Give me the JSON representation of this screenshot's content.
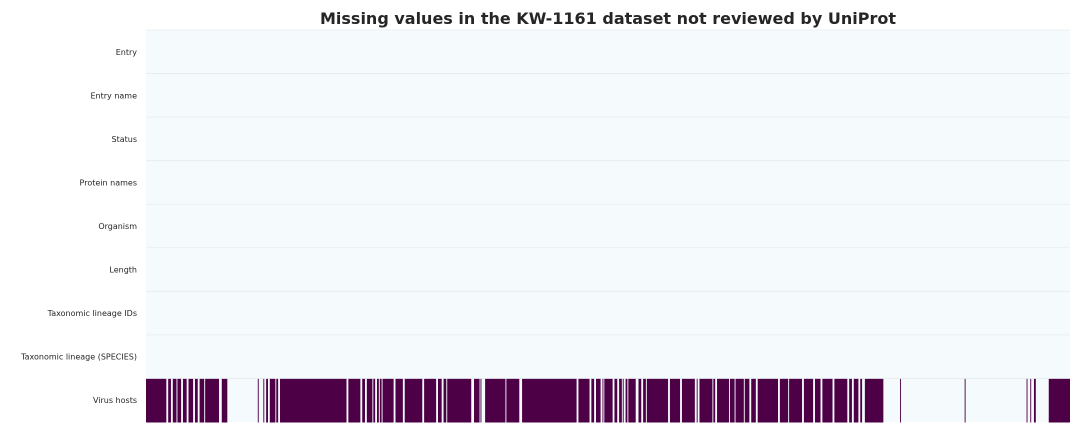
{
  "chart_data": {
    "type": "heatmap",
    "title": "Missing values in the KW-1161 dataset not reviewed by UniProt",
    "rows": [
      "Entry",
      "Entry name",
      "Status",
      "Protein names",
      "Organism",
      "Length",
      "Taxonomic lineage IDs",
      "Taxonomic lineage (SPECIES)",
      "Virus hosts"
    ],
    "colors": {
      "present": "#f5fbfd",
      "missing": "#4e0047",
      "grid": "#e6ecee"
    },
    "grid": true,
    "missing_rows": [
      0,
      0,
      0,
      0,
      0,
      0,
      0,
      0,
      1
    ],
    "missing_segments": {
      "row": "Virus hosts",
      "unit": "fraction of records",
      "ranges": [
        [
          0.0,
          0.022
        ],
        [
          0.024,
          0.027
        ],
        [
          0.029,
          0.033
        ],
        [
          0.034,
          0.038
        ],
        [
          0.04,
          0.044
        ],
        [
          0.046,
          0.051
        ],
        [
          0.053,
          0.056
        ],
        [
          0.058,
          0.063
        ],
        [
          0.064,
          0.079
        ],
        [
          0.082,
          0.088
        ],
        [
          0.121,
          0.122
        ],
        [
          0.127,
          0.128
        ],
        [
          0.13,
          0.132
        ],
        [
          0.134,
          0.14
        ],
        [
          0.141,
          0.143
        ],
        [
          0.145,
          0.217
        ],
        [
          0.219,
          0.232
        ],
        [
          0.234,
          0.237
        ],
        [
          0.239,
          0.245
        ],
        [
          0.246,
          0.248
        ],
        [
          0.25,
          0.252
        ],
        [
          0.253,
          0.255
        ],
        [
          0.256,
          0.268
        ],
        [
          0.27,
          0.278
        ],
        [
          0.28,
          0.299
        ],
        [
          0.301,
          0.314
        ],
        [
          0.316,
          0.32
        ],
        [
          0.322,
          0.325
        ],
        [
          0.326,
          0.352
        ],
        [
          0.355,
          0.361
        ],
        [
          0.362,
          0.363
        ],
        [
          0.367,
          0.389
        ],
        [
          0.39,
          0.404
        ],
        [
          0.407,
          0.466
        ],
        [
          0.468,
          0.48
        ],
        [
          0.482,
          0.485
        ],
        [
          0.487,
          0.492
        ],
        [
          0.494,
          0.495
        ],
        [
          0.496,
          0.505
        ],
        [
          0.507,
          0.51
        ],
        [
          0.512,
          0.515
        ],
        [
          0.516,
          0.517
        ],
        [
          0.519,
          0.521
        ],
        [
          0.522,
          0.53
        ],
        [
          0.533,
          0.536
        ],
        [
          0.538,
          0.541
        ],
        [
          0.542,
          0.565
        ],
        [
          0.567,
          0.578
        ],
        [
          0.58,
          0.594
        ],
        [
          0.596,
          0.597
        ],
        [
          0.599,
          0.613
        ],
        [
          0.614,
          0.616
        ],
        [
          0.618,
          0.631
        ],
        [
          0.632,
          0.637
        ],
        [
          0.638,
          0.647
        ],
        [
          0.648,
          0.653
        ],
        [
          0.655,
          0.66
        ],
        [
          0.662,
          0.684
        ],
        [
          0.686,
          0.695
        ],
        [
          0.696,
          0.71
        ],
        [
          0.712,
          0.722
        ],
        [
          0.724,
          0.73
        ],
        [
          0.732,
          0.743
        ],
        [
          0.745,
          0.759
        ],
        [
          0.761,
          0.764
        ],
        [
          0.766,
          0.771
        ],
        [
          0.773,
          0.775
        ],
        [
          0.778,
          0.798
        ],
        [
          0.816,
          0.817
        ],
        [
          0.886,
          0.887
        ],
        [
          0.953,
          0.954
        ],
        [
          0.957,
          0.958
        ],
        [
          0.961,
          0.963
        ],
        [
          0.977,
          1.0
        ]
      ]
    }
  }
}
